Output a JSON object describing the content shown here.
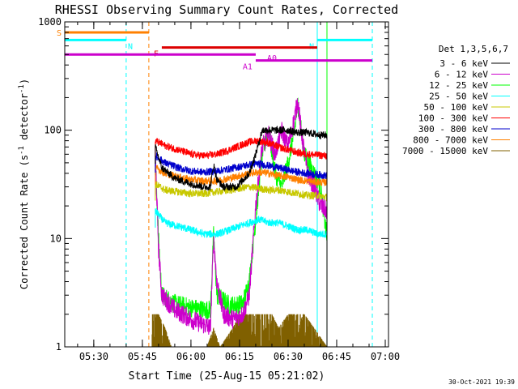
{
  "chart_data": {
    "type": "line",
    "title": "RHESSI Observing Summary Count Rates, Corrected",
    "xlabel": "Start Time (25-Aug-15 05:21:02)",
    "ylabel_main": "Corrected Count Rate (s",
    "ylabel_sup1": "-1",
    "ylabel_mid": " detector",
    "ylabel_sup2": "-1",
    "ylabel_end": ")",
    "y_scale": "log",
    "ylim": [
      1,
      1000
    ],
    "y_ticks": [
      {
        "value": 1,
        "label": "1"
      },
      {
        "value": 10,
        "label": "10"
      },
      {
        "value": 100,
        "label": "100"
      },
      {
        "value": 1000,
        "label": "1000"
      }
    ],
    "xlim": [
      "05:21:02",
      "07:01:00"
    ],
    "x_ticks": [
      {
        "value": "05:30",
        "label": "05:30"
      },
      {
        "value": "05:45",
        "label": "05:45"
      },
      {
        "value": "06:00",
        "label": "06:00"
      },
      {
        "value": "06:15",
        "label": "06:15"
      },
      {
        "value": "06:30",
        "label": "06:30"
      },
      {
        "value": "06:45",
        "label": "06:45"
      },
      {
        "value": "07:00",
        "label": "07:00"
      }
    ],
    "legend_header": "Det 1,3,5,6,7",
    "legend_position": "right",
    "series": [
      {
        "name": "3 - 6 keV",
        "color": "#000000",
        "start": "05:49",
        "end": "06:42",
        "points": [
          [
            "05:49",
            70
          ],
          [
            "05:51",
            45
          ],
          [
            "05:55",
            36
          ],
          [
            "06:00",
            32
          ],
          [
            "06:04",
            30
          ],
          [
            "06:06",
            30
          ],
          [
            "06:07",
            48
          ],
          [
            "06:08",
            35
          ],
          [
            "06:10",
            30
          ],
          [
            "06:14",
            30
          ],
          [
            "06:18",
            40
          ],
          [
            "06:20",
            60
          ],
          [
            "06:22",
            100
          ],
          [
            "06:27",
            100
          ],
          [
            "06:30",
            100
          ],
          [
            "06:33",
            95
          ],
          [
            "06:36",
            95
          ],
          [
            "06:40",
            90
          ],
          [
            "06:42",
            90
          ]
        ]
      },
      {
        "name": "6 - 12 keV",
        "color": "#cc00cc",
        "start": "05:49",
        "end": "06:42",
        "points": [
          [
            "05:49",
            60
          ],
          [
            "05:50",
            8
          ],
          [
            "05:51",
            3
          ],
          [
            "05:55",
            2.2
          ],
          [
            "06:00",
            1.8
          ],
          [
            "06:04",
            1.6
          ],
          [
            "06:06",
            1.5
          ],
          [
            "06:07",
            10
          ],
          [
            "06:08",
            4
          ],
          [
            "06:10",
            2
          ],
          [
            "06:13",
            1.8
          ],
          [
            "06:16",
            2
          ],
          [
            "06:18",
            3
          ],
          [
            "06:20",
            20
          ],
          [
            "06:22",
            70
          ],
          [
            "06:24",
            90
          ],
          [
            "06:26",
            60
          ],
          [
            "06:28",
            100
          ],
          [
            "06:30",
            70
          ],
          [
            "06:32",
            130
          ],
          [
            "06:33",
            190
          ],
          [
            "06:34",
            100
          ],
          [
            "06:36",
            40
          ],
          [
            "06:38",
            30
          ],
          [
            "06:40",
            20
          ],
          [
            "06:42",
            18
          ]
        ]
      },
      {
        "name": "12 - 25 keV",
        "color": "#00ff00",
        "start": "05:49",
        "end": "06:42",
        "points": [
          [
            "05:49",
            55
          ],
          [
            "05:50",
            10
          ],
          [
            "05:51",
            3
          ],
          [
            "05:55",
            2.5
          ],
          [
            "06:00",
            2.3
          ],
          [
            "06:04",
            2.2
          ],
          [
            "06:06",
            2.2
          ],
          [
            "06:07",
            11
          ],
          [
            "06:08",
            3
          ],
          [
            "06:12",
            2.4
          ],
          [
            "06:16",
            2.5
          ],
          [
            "06:18",
            4
          ],
          [
            "06:20",
            15
          ],
          [
            "06:22",
            60
          ],
          [
            "06:24",
            100
          ],
          [
            "06:26",
            40
          ],
          [
            "06:28",
            30
          ],
          [
            "06:30",
            50
          ],
          [
            "06:32",
            100
          ],
          [
            "06:33",
            180
          ],
          [
            "06:35",
            60
          ],
          [
            "06:38",
            40
          ],
          [
            "06:40",
            30
          ],
          [
            "06:42",
            10
          ]
        ]
      },
      {
        "name": "25 - 50 keV",
        "color": "#00ffff",
        "start": "05:49",
        "end": "06:42",
        "points": [
          [
            "05:49",
            18
          ],
          [
            "05:52",
            14
          ],
          [
            "05:56",
            13
          ],
          [
            "06:00",
            12
          ],
          [
            "06:04",
            11
          ],
          [
            "06:08",
            11
          ],
          [
            "06:12",
            12
          ],
          [
            "06:15",
            13
          ],
          [
            "06:18",
            14
          ],
          [
            "06:21",
            15
          ],
          [
            "06:24",
            14
          ],
          [
            "06:27",
            14
          ],
          [
            "06:30",
            13
          ],
          [
            "06:33",
            12
          ],
          [
            "06:36",
            12
          ],
          [
            "06:39",
            11
          ],
          [
            "06:42",
            11
          ]
        ]
      },
      {
        "name": "50 - 100 keV",
        "color": "#c8c800",
        "start": "05:49",
        "end": "06:42",
        "points": [
          [
            "05:49",
            32
          ],
          [
            "05:52",
            28
          ],
          [
            "05:56",
            27
          ],
          [
            "06:00",
            26
          ],
          [
            "06:04",
            26
          ],
          [
            "06:08",
            27
          ],
          [
            "06:12",
            28
          ],
          [
            "06:15",
            29
          ],
          [
            "06:18",
            30
          ],
          [
            "06:21",
            29
          ],
          [
            "06:24",
            28
          ],
          [
            "06:27",
            28
          ],
          [
            "06:30",
            27
          ],
          [
            "06:33",
            26
          ],
          [
            "06:36",
            25
          ],
          [
            "06:39",
            25
          ],
          [
            "06:42",
            24
          ]
        ]
      },
      {
        "name": "100 - 300 keV",
        "color": "#ff0000",
        "start": "05:49",
        "end": "06:42",
        "points": [
          [
            "05:49",
            80
          ],
          [
            "05:52",
            72
          ],
          [
            "05:56",
            66
          ],
          [
            "06:00",
            60
          ],
          [
            "06:04",
            58
          ],
          [
            "06:08",
            60
          ],
          [
            "06:12",
            66
          ],
          [
            "06:15",
            72
          ],
          [
            "06:18",
            78
          ],
          [
            "06:21",
            80
          ],
          [
            "06:24",
            76
          ],
          [
            "06:27",
            70
          ],
          [
            "06:30",
            66
          ],
          [
            "06:33",
            62
          ],
          [
            "06:36",
            60
          ],
          [
            "06:39",
            59
          ],
          [
            "06:42",
            58
          ]
        ]
      },
      {
        "name": "300 - 800 keV",
        "color": "#0000cc",
        "start": "05:49",
        "end": "06:42",
        "points": [
          [
            "05:49",
            58
          ],
          [
            "05:52",
            50
          ],
          [
            "05:56",
            45
          ],
          [
            "06:00",
            42
          ],
          [
            "06:04",
            41
          ],
          [
            "06:08",
            42
          ],
          [
            "06:12",
            44
          ],
          [
            "06:15",
            46
          ],
          [
            "06:18",
            48
          ],
          [
            "06:21",
            49
          ],
          [
            "06:24",
            47
          ],
          [
            "06:27",
            45
          ],
          [
            "06:30",
            43
          ],
          [
            "06:33",
            41
          ],
          [
            "06:36",
            40
          ],
          [
            "06:39",
            39
          ],
          [
            "06:42",
            38
          ]
        ]
      },
      {
        "name": "800 - 7000 keV",
        "color": "#ff8000",
        "start": "05:49",
        "end": "06:42",
        "points": [
          [
            "05:49",
            45
          ],
          [
            "05:52",
            40
          ],
          [
            "05:56",
            37
          ],
          [
            "06:00",
            35
          ],
          [
            "06:04",
            34
          ],
          [
            "06:08",
            34
          ],
          [
            "06:12",
            36
          ],
          [
            "06:15",
            38
          ],
          [
            "06:18",
            40
          ],
          [
            "06:21",
            41
          ],
          [
            "06:24",
            40
          ],
          [
            "06:27",
            38
          ],
          [
            "06:30",
            37
          ],
          [
            "06:33",
            35
          ],
          [
            "06:36",
            34
          ],
          [
            "06:39",
            33
          ],
          [
            "06:42",
            33
          ]
        ]
      },
      {
        "name": "7000 - 15000 keV",
        "color": "#806000",
        "start": "05:48",
        "end": "06:42",
        "points": [
          [
            "05:48",
            2
          ],
          [
            "05:50",
            2
          ],
          [
            "05:52",
            1.5
          ],
          [
            "05:54",
            1
          ],
          [
            "06:05",
            1
          ],
          [
            "06:07",
            1.5
          ],
          [
            "06:09",
            1
          ],
          [
            "06:13",
            1.5
          ],
          [
            "06:15",
            2
          ],
          [
            "06:25",
            2
          ],
          [
            "06:27",
            1.5
          ],
          [
            "06:30",
            2
          ],
          [
            "06:35",
            2
          ],
          [
            "06:38",
            1.5
          ],
          [
            "06:42",
            1
          ]
        ]
      }
    ],
    "flags": [
      {
        "label": "S",
        "color": "#ff8000",
        "start": "05:21:02",
        "end": "05:47",
        "level": 800
      },
      {
        "label": "N",
        "color": "#00ffff",
        "start": "05:21:02",
        "end": "05:40",
        "level": 680
      },
      {
        "label": "N",
        "color": "#00ffff",
        "start": "06:39",
        "end": "06:56",
        "level": 680
      },
      {
        "label": "F",
        "color": "#dd0000",
        "start": "05:51",
        "end": "06:39",
        "level": 580
      },
      {
        "label": "A0",
        "color": "#cc00cc",
        "start": "05:21:02",
        "end": "06:20",
        "level": 500
      },
      {
        "label": "A1",
        "color": "#cc00cc",
        "start": "06:20",
        "end": "06:56",
        "level": 440
      }
    ],
    "vlines": [
      {
        "time": "05:21:02",
        "color": "#00ff00",
        "style": "solid"
      },
      {
        "time": "05:40",
        "color": "#00ffff",
        "style": "dashed"
      },
      {
        "time": "05:47",
        "color": "#ff8000",
        "style": "dashed"
      },
      {
        "time": "06:39",
        "color": "#00ffff",
        "style": "solid"
      },
      {
        "time": "06:42",
        "color": "#00ff00",
        "style": "solid"
      },
      {
        "time": "06:56",
        "color": "#00ffff",
        "style": "dashed"
      }
    ],
    "grid": false
  },
  "footer_date": "30-Oct-2021 19:39"
}
